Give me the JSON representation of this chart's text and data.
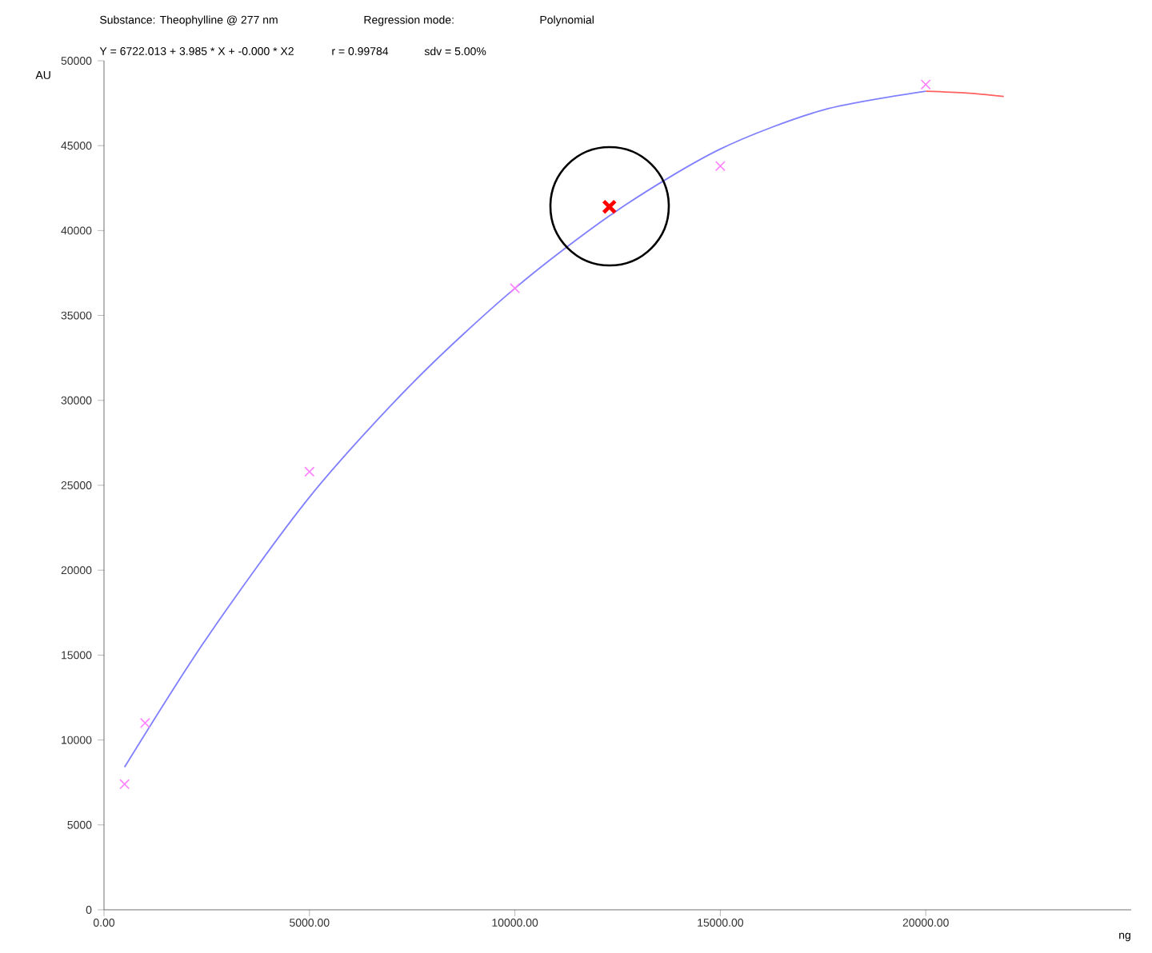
{
  "chart_data": {
    "type": "scatter",
    "xlabel": "ng",
    "ylabel": "AU",
    "annotations": [
      "Substance: Theophylline @ 277 nm",
      "Regression mode:",
      "Polynomial",
      "Y = 6722.013 + 3.985 * X + -0.000 * X2",
      "r = 0.99784",
      "sdv = 5.00%"
    ],
    "xlim": [
      0,
      25000
    ],
    "ylim": [
      0,
      50000
    ],
    "xticks": [
      {
        "value": 0,
        "label": "0.00"
      },
      {
        "value": 5000,
        "label": "5000.00"
      },
      {
        "value": 10000,
        "label": "10000.00"
      },
      {
        "value": 15000,
        "label": "15000.00"
      },
      {
        "value": 20000,
        "label": "20000.00"
      }
    ],
    "yticks": [
      0,
      5000,
      10000,
      15000,
      20000,
      25000,
      30000,
      35000,
      40000,
      45000,
      50000
    ],
    "series": [
      {
        "type": "line",
        "color": "#8080ff",
        "marker": "none",
        "line_style": "solid",
        "x": [
          500,
          2500,
          5000,
          7500,
          10000,
          12500,
          15000,
          17500,
          20000
        ],
        "values": [
          8400,
          16000,
          24300,
          31000,
          36600,
          41200,
          44800,
          47100,
          48200
        ]
      },
      {
        "type": "line",
        "color": "#ff6060",
        "marker": "none",
        "line_style": "solid",
        "x": [
          20000,
          21000,
          21900
        ],
        "values": [
          48200,
          48100,
          47900
        ]
      },
      {
        "type": "scatter",
        "color": "#ff80ff",
        "marker": "cross",
        "x": [
          500,
          1000,
          5000,
          10000,
          15000,
          20000
        ],
        "values": [
          7400,
          11000,
          25800,
          36600,
          43800,
          48600
        ]
      },
      {
        "type": "scatter",
        "color": "#ff0000",
        "marker": "cross",
        "x": [
          12300
        ],
        "values": [
          41400
        ]
      }
    ]
  }
}
